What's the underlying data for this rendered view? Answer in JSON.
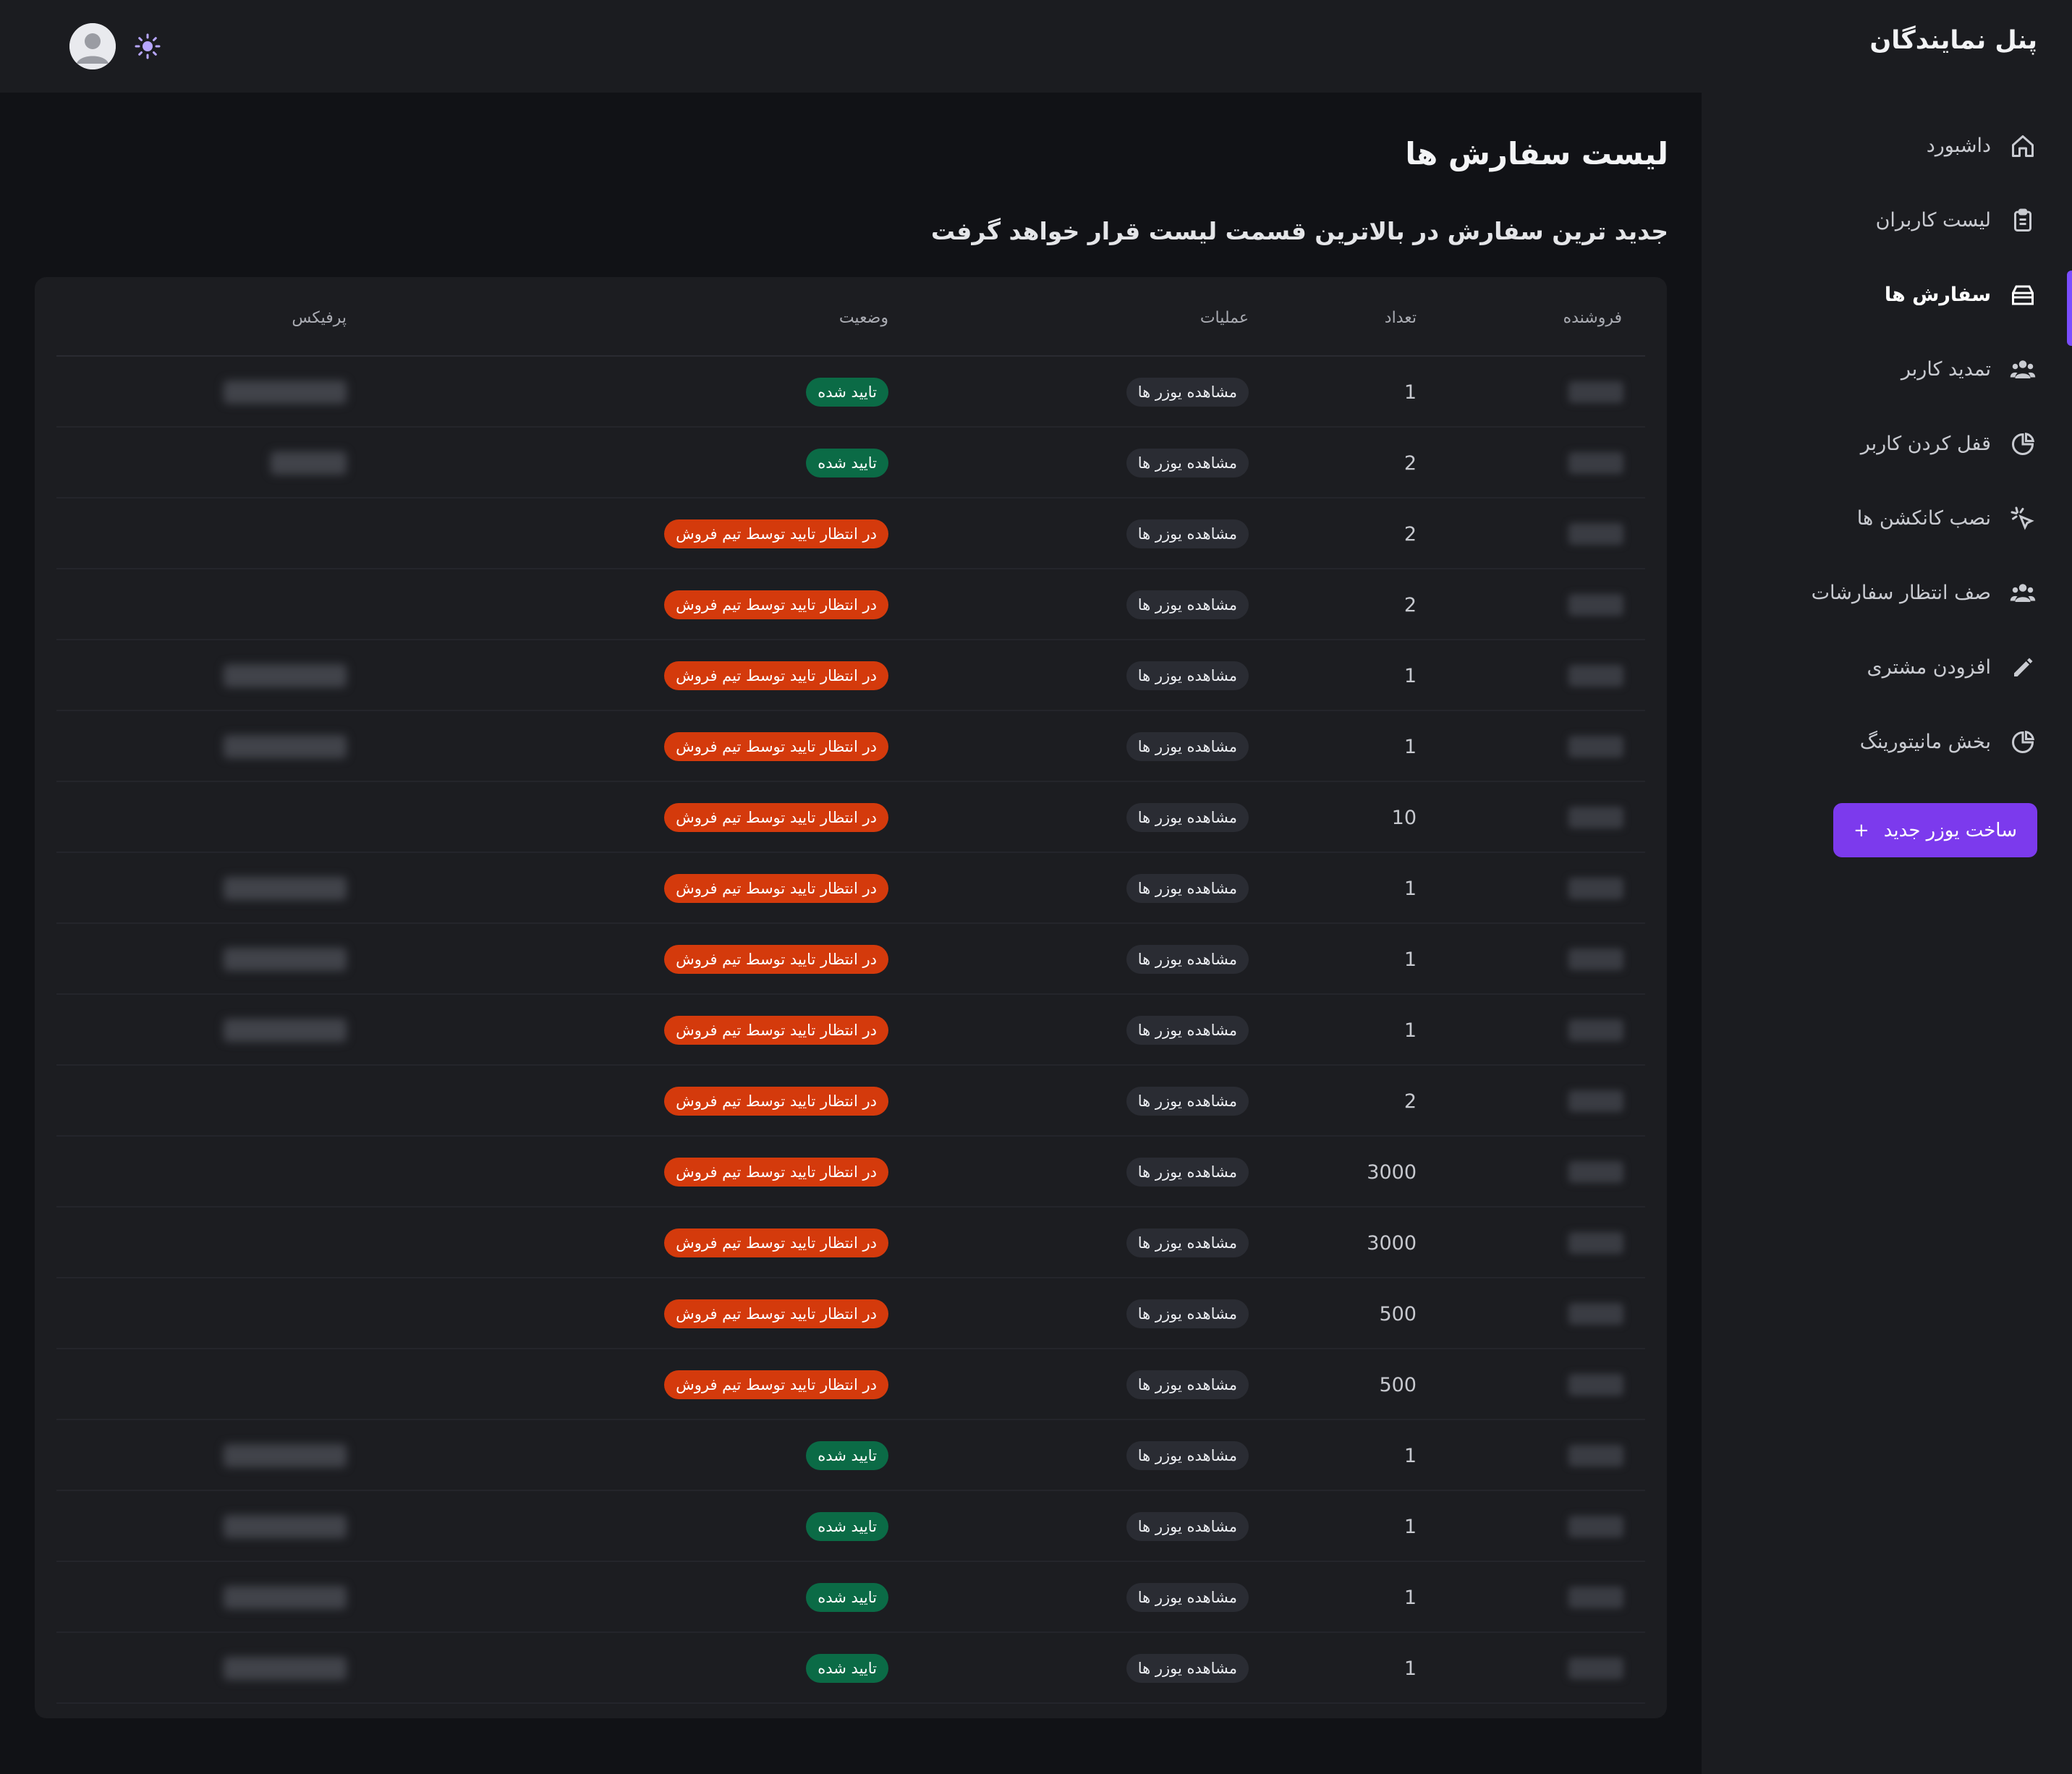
{
  "sidebar": {
    "brand": "پنل نمایندگان",
    "items": [
      {
        "label": "داشبورد",
        "icon": "home-icon",
        "active": false
      },
      {
        "label": "لیست کاربران",
        "icon": "clipboard-icon",
        "active": false
      },
      {
        "label": "سفارش ها",
        "icon": "box-icon",
        "active": true
      },
      {
        "label": "تمدید کاربر",
        "icon": "users-icon",
        "active": false
      },
      {
        "label": "قفل کردن کاربر",
        "icon": "pie-chart-icon",
        "active": false
      },
      {
        "label": "نصب کانکشن ها",
        "icon": "cursor-click-icon",
        "active": false
      },
      {
        "label": "صف انتظار سفارشات",
        "icon": "users-icon",
        "active": false
      },
      {
        "label": "افزودن مشتری",
        "icon": "pencil-icon",
        "active": false
      },
      {
        "label": "بخش مانیتورینگ",
        "icon": "pie-chart-icon",
        "active": false
      }
    ],
    "new_button": "ساخت یوزر جدید",
    "new_button_icon": "+"
  },
  "main": {
    "title": "لیست سفارش ها",
    "subtitle": "جدید ترین سفارش در بالاترین قسمت لیست قرار خواهد گرفت",
    "columns": {
      "seller": "فروشنده",
      "quantity": "تعداد",
      "operations": "عملیات",
      "status": "وضعیت",
      "prefix": "پرفیکس"
    },
    "view_users_label": "مشاهده یوزر ها",
    "rows": [
      {
        "quantity": "1",
        "status": "تایید شده",
        "status_type": "ok"
      },
      {
        "quantity": "2",
        "status": "تایید شده",
        "status_type": "ok"
      },
      {
        "quantity": "2",
        "status": "در انتظار تایید توسط تیم فروش",
        "status_type": "pending"
      },
      {
        "quantity": "2",
        "status": "در انتظار تایید توسط تیم فروش",
        "status_type": "pending"
      },
      {
        "quantity": "1",
        "status": "در انتظار تایید توسط تیم فروش",
        "status_type": "pending"
      },
      {
        "quantity": "1",
        "status": "در انتظار تایید توسط تیم فروش",
        "status_type": "pending"
      },
      {
        "quantity": "10",
        "status": "در انتظار تایید توسط تیم فروش",
        "status_type": "pending"
      },
      {
        "quantity": "1",
        "status": "در انتظار تایید توسط تیم فروش",
        "status_type": "pending"
      },
      {
        "quantity": "1",
        "status": "در انتظار تایید توسط تیم فروش",
        "status_type": "pending"
      },
      {
        "quantity": "1",
        "status": "در انتظار تایید توسط تیم فروش",
        "status_type": "pending"
      },
      {
        "quantity": "2",
        "status": "در انتظار تایید توسط تیم فروش",
        "status_type": "pending"
      },
      {
        "quantity": "3000",
        "status": "در انتظار تایید توسط تیم فروش",
        "status_type": "pending"
      },
      {
        "quantity": "3000",
        "status": "در انتظار تایید توسط تیم فروش",
        "status_type": "pending"
      },
      {
        "quantity": "500",
        "status": "در انتظار تایید توسط تیم فروش",
        "status_type": "pending"
      },
      {
        "quantity": "500",
        "status": "در انتظار تایید توسط تیم فروش",
        "status_type": "pending"
      },
      {
        "quantity": "1",
        "status": "تایید شده",
        "status_type": "ok"
      },
      {
        "quantity": "1",
        "status": "تایید شده",
        "status_type": "ok"
      },
      {
        "quantity": "1",
        "status": "تایید شده",
        "status_type": "ok"
      },
      {
        "quantity": "1",
        "status": "تایید شده",
        "status_type": "ok"
      }
    ]
  },
  "header": {
    "avatar_icon": "user-avatar-icon",
    "theme_icon": "sun-icon"
  },
  "colors": {
    "accent": "#7c3aed",
    "status_ok": "#0b6b46",
    "status_pending": "#d43a0c"
  }
}
